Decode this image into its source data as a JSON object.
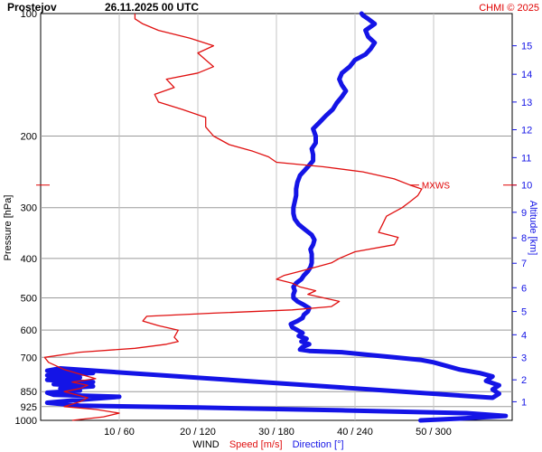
{
  "chart_data": {
    "type": "line",
    "title_station": "Prostejov",
    "title_time": "26.11.2025 00 UTC",
    "credit": "CHMI © 2025",
    "ylabel_left": "Pressure [hPa]",
    "ylabel_right": "Altitude [km]",
    "xlabel_prefix": "WIND",
    "xlabel_speed": "Speed [m/s]",
    "xlabel_direction": "Direction [°]",
    "pressure_range": [
      1000,
      100
    ],
    "pressure_log_scale": true,
    "speed_range": [
      0,
      60
    ],
    "direction_range": [
      0,
      360
    ],
    "grid": true,
    "pressure_ticks": [
      {
        "p": 100,
        "label": "100"
      },
      {
        "p": 200,
        "label": "200"
      },
      {
        "p": 300,
        "label": "300"
      },
      {
        "p": 400,
        "label": "400"
      },
      {
        "p": 500,
        "label": "500"
      },
      {
        "p": 600,
        "label": "600"
      },
      {
        "p": 700,
        "label": "700"
      },
      {
        "p": 850,
        "label": "850"
      },
      {
        "p": 925,
        "label": "925"
      },
      {
        "p": 1000,
        "label": "1000"
      }
    ],
    "x_ticks": [
      {
        "speed": 10,
        "label": "10 / 60"
      },
      {
        "speed": 20,
        "label": "20 / 120"
      },
      {
        "speed": 30,
        "label": "30 / 180"
      },
      {
        "speed": 40,
        "label": "40 / 240"
      },
      {
        "speed": 50,
        "label": "50 / 300"
      }
    ],
    "altitude_ticks": [
      {
        "km": 1,
        "p": 900,
        "label": "1"
      },
      {
        "km": 2,
        "p": 795,
        "label": "2"
      },
      {
        "km": 3,
        "p": 700,
        "label": "3"
      },
      {
        "km": 4,
        "p": 616,
        "label": "4"
      },
      {
        "km": 5,
        "p": 540,
        "label": "5"
      },
      {
        "km": 6,
        "p": 472,
        "label": "6"
      },
      {
        "km": 7,
        "p": 411,
        "label": "7"
      },
      {
        "km": 8,
        "p": 356,
        "label": "8"
      },
      {
        "km": 9,
        "p": 308,
        "label": "9"
      },
      {
        "km": 10,
        "p": 264,
        "label": "10"
      },
      {
        "km": 11,
        "p": 226,
        "label": "11"
      },
      {
        "km": 12,
        "p": 193,
        "label": "12"
      },
      {
        "km": 13,
        "p": 165,
        "label": "13"
      },
      {
        "km": 14,
        "p": 141,
        "label": "14"
      },
      {
        "km": 15,
        "p": 120,
        "label": "15"
      }
    ],
    "max_wind": {
      "label": "MXWS",
      "pressure": 264,
      "speed": 47
    },
    "series": [
      {
        "name": "Speed [m/s]",
        "color": "#e01010",
        "unit": "m/s",
        "points": [
          {
            "p": 1000,
            "v": 4
          },
          {
            "p": 980,
            "v": 8
          },
          {
            "p": 960,
            "v": 10
          },
          {
            "p": 940,
            "v": 7
          },
          {
            "p": 925,
            "v": 3
          },
          {
            "p": 900,
            "v": 5
          },
          {
            "p": 880,
            "v": 6
          },
          {
            "p": 860,
            "v": 4
          },
          {
            "p": 850,
            "v": 3
          },
          {
            "p": 835,
            "v": 5
          },
          {
            "p": 820,
            "v": 6
          },
          {
            "p": 805,
            "v": 4
          },
          {
            "p": 790,
            "v": 7
          },
          {
            "p": 770,
            "v": 5
          },
          {
            "p": 750,
            "v": 3
          },
          {
            "p": 720,
            "v": 1
          },
          {
            "p": 700,
            "v": 0.5
          },
          {
            "p": 680,
            "v": 5
          },
          {
            "p": 665,
            "v": 12
          },
          {
            "p": 650,
            "v": 16
          },
          {
            "p": 640,
            "v": 17.5
          },
          {
            "p": 625,
            "v": 17
          },
          {
            "p": 600,
            "v": 17.5
          },
          {
            "p": 585,
            "v": 15
          },
          {
            "p": 570,
            "v": 13
          },
          {
            "p": 555,
            "v": 13.5
          },
          {
            "p": 545,
            "v": 22
          },
          {
            "p": 535,
            "v": 32
          },
          {
            "p": 525,
            "v": 37
          },
          {
            "p": 510,
            "v": 38
          },
          {
            "p": 500,
            "v": 36
          },
          {
            "p": 490,
            "v": 34
          },
          {
            "p": 480,
            "v": 35
          },
          {
            "p": 470,
            "v": 33
          },
          {
            "p": 460,
            "v": 32
          },
          {
            "p": 450,
            "v": 30
          },
          {
            "p": 440,
            "v": 31
          },
          {
            "p": 430,
            "v": 33
          },
          {
            "p": 420,
            "v": 35
          },
          {
            "p": 410,
            "v": 37
          },
          {
            "p": 400,
            "v": 38
          },
          {
            "p": 385,
            "v": 40
          },
          {
            "p": 370,
            "v": 45
          },
          {
            "p": 355,
            "v": 45.5
          },
          {
            "p": 345,
            "v": 43
          },
          {
            "p": 330,
            "v": 43.5
          },
          {
            "p": 315,
            "v": 44
          },
          {
            "p": 300,
            "v": 46
          },
          {
            "p": 290,
            "v": 47
          },
          {
            "p": 280,
            "v": 48
          },
          {
            "p": 270,
            "v": 48.5
          },
          {
            "p": 264,
            "v": 47
          },
          {
            "p": 255,
            "v": 45
          },
          {
            "p": 245,
            "v": 41
          },
          {
            "p": 238,
            "v": 36
          },
          {
            "p": 232,
            "v": 30
          },
          {
            "p": 225,
            "v": 29
          },
          {
            "p": 218,
            "v": 27
          },
          {
            "p": 210,
            "v": 24
          },
          {
            "p": 200,
            "v": 22
          },
          {
            "p": 190,
            "v": 21
          },
          {
            "p": 180,
            "v": 21
          },
          {
            "p": 172,
            "v": 18
          },
          {
            "p": 165,
            "v": 15
          },
          {
            "p": 158,
            "v": 14.5
          },
          {
            "p": 152,
            "v": 17
          },
          {
            "p": 145,
            "v": 16
          },
          {
            "p": 140,
            "v": 20
          },
          {
            "p": 135,
            "v": 22
          },
          {
            "p": 130,
            "v": 21
          },
          {
            "p": 125,
            "v": 20
          },
          {
            "p": 120,
            "v": 22
          },
          {
            "p": 115,
            "v": 19
          },
          {
            "p": 110,
            "v": 15
          },
          {
            "p": 106,
            "v": 13
          },
          {
            "p": 103,
            "v": 12
          },
          {
            "p": 100,
            "v": 12
          }
        ]
      },
      {
        "name": "Direction [°]",
        "color": "#1414e6",
        "unit": "deg",
        "points": [
          {
            "p": 1000,
            "v": 290
          },
          {
            "p": 990,
            "v": 320
          },
          {
            "p": 975,
            "v": 355
          },
          {
            "p": 960,
            "v": 325
          },
          {
            "p": 945,
            "v": 230
          },
          {
            "p": 930,
            "v": 120
          },
          {
            "p": 920,
            "v": 30
          },
          {
            "p": 905,
            "v": 5
          },
          {
            "p": 890,
            "v": 30
          },
          {
            "p": 875,
            "v": 60
          },
          {
            "p": 865,
            "v": 10
          },
          {
            "p": 855,
            "v": 5
          },
          {
            "p": 845,
            "v": 30
          },
          {
            "p": 835,
            "v": 15
          },
          {
            "p": 825,
            "v": 40
          },
          {
            "p": 815,
            "v": 10
          },
          {
            "p": 805,
            "v": 40
          },
          {
            "p": 795,
            "v": 5
          },
          {
            "p": 785,
            "v": 30
          },
          {
            "p": 775,
            "v": 5
          },
          {
            "p": 765,
            "v": 40
          },
          {
            "p": 755,
            "v": 5
          },
          {
            "p": 745,
            "v": 15
          },
          {
            "p": 880,
            "v": 345
          },
          {
            "p": 860,
            "v": 350
          },
          {
            "p": 840,
            "v": 345
          },
          {
            "p": 820,
            "v": 350
          },
          {
            "p": 800,
            "v": 340
          },
          {
            "p": 780,
            "v": 345
          },
          {
            "p": 765,
            "v": 335
          },
          {
            "p": 750,
            "v": 320
          },
          {
            "p": 735,
            "v": 310
          },
          {
            "p": 720,
            "v": 300
          },
          {
            "p": 710,
            "v": 290
          },
          {
            "p": 700,
            "v": 270
          },
          {
            "p": 690,
            "v": 250
          },
          {
            "p": 680,
            "v": 230
          },
          {
            "p": 675,
            "v": 205
          },
          {
            "p": 670,
            "v": 198
          },
          {
            "p": 660,
            "v": 200
          },
          {
            "p": 650,
            "v": 205
          },
          {
            "p": 640,
            "v": 199
          },
          {
            "p": 630,
            "v": 203
          },
          {
            "p": 620,
            "v": 197
          },
          {
            "p": 610,
            "v": 200
          },
          {
            "p": 600,
            "v": 196
          },
          {
            "p": 590,
            "v": 192
          },
          {
            "p": 580,
            "v": 191
          },
          {
            "p": 570,
            "v": 196
          },
          {
            "p": 560,
            "v": 200
          },
          {
            "p": 550,
            "v": 201
          },
          {
            "p": 540,
            "v": 204
          },
          {
            "p": 530,
            "v": 205
          },
          {
            "p": 520,
            "v": 201
          },
          {
            "p": 510,
            "v": 196
          },
          {
            "p": 500,
            "v": 193
          },
          {
            "p": 490,
            "v": 193
          },
          {
            "p": 480,
            "v": 194
          },
          {
            "p": 470,
            "v": 193
          },
          {
            "p": 460,
            "v": 195
          },
          {
            "p": 450,
            "v": 199
          },
          {
            "p": 440,
            "v": 201
          },
          {
            "p": 430,
            "v": 204
          },
          {
            "p": 420,
            "v": 206
          },
          {
            "p": 410,
            "v": 207
          },
          {
            "p": 400,
            "v": 207
          },
          {
            "p": 390,
            "v": 207
          },
          {
            "p": 380,
            "v": 206
          },
          {
            "p": 370,
            "v": 208
          },
          {
            "p": 360,
            "v": 209
          },
          {
            "p": 350,
            "v": 207
          },
          {
            "p": 340,
            "v": 202
          },
          {
            "p": 330,
            "v": 197
          },
          {
            "p": 320,
            "v": 194
          },
          {
            "p": 310,
            "v": 193
          },
          {
            "p": 300,
            "v": 193
          },
          {
            "p": 290,
            "v": 194
          },
          {
            "p": 280,
            "v": 195
          },
          {
            "p": 270,
            "v": 195
          },
          {
            "p": 260,
            "v": 196
          },
          {
            "p": 250,
            "v": 198
          },
          {
            "p": 240,
            "v": 203
          },
          {
            "p": 230,
            "v": 208
          },
          {
            "p": 222,
            "v": 208
          },
          {
            "p": 215,
            "v": 207
          },
          {
            "p": 208,
            "v": 210
          },
          {
            "p": 200,
            "v": 210
          },
          {
            "p": 192,
            "v": 208
          },
          {
            "p": 185,
            "v": 213
          },
          {
            "p": 178,
            "v": 218
          },
          {
            "p": 172,
            "v": 223
          },
          {
            "p": 166,
            "v": 226
          },
          {
            "p": 160,
            "v": 230
          },
          {
            "p": 155,
            "v": 233
          },
          {
            "p": 150,
            "v": 230
          },
          {
            "p": 145,
            "v": 228
          },
          {
            "p": 140,
            "v": 230
          },
          {
            "p": 135,
            "v": 236
          },
          {
            "p": 130,
            "v": 240
          },
          {
            "p": 126,
            "v": 248
          },
          {
            "p": 122,
            "v": 252
          },
          {
            "p": 118,
            "v": 255
          },
          {
            "p": 114,
            "v": 250
          },
          {
            "p": 110,
            "v": 248
          },
          {
            "p": 106,
            "v": 255
          },
          {
            "p": 103,
            "v": 250
          },
          {
            "p": 101,
            "v": 246
          },
          {
            "p": 100,
            "v": 245
          }
        ]
      }
    ]
  }
}
